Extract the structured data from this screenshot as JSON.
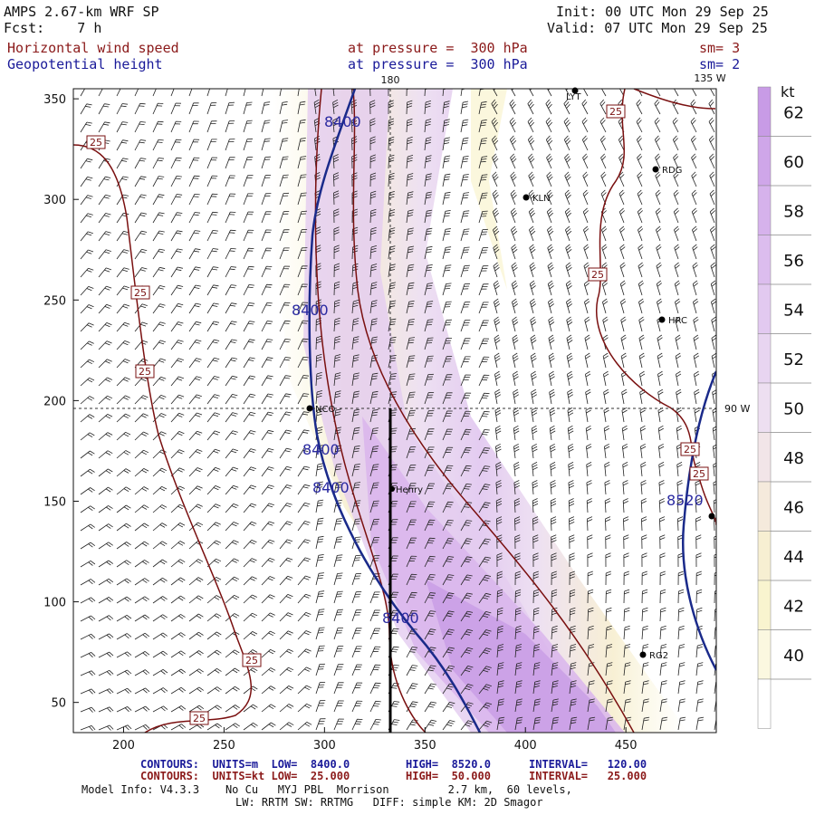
{
  "header": {
    "model": "AMPS 2.67-km WRF SP",
    "forecast": "Fcst:    7 h",
    "init": "Init: 00 UTC Mon 29 Sep 25",
    "valid": "Valid: 07 UTC Mon 29 Sep 25",
    "field1": "Horizontal wind speed",
    "field1_level": "at pressure =  300 hPa",
    "field1_sm": "sm= 3",
    "field2": "Geopotential height",
    "field2_level": "at pressure =  300 hPa",
    "field2_sm": "sm= 2"
  },
  "map": {
    "x_ticks": [
      "200",
      "250",
      "300",
      "350",
      "400",
      "450"
    ],
    "y_ticks": [
      "50",
      "100",
      "150",
      "200",
      "250",
      "300",
      "350"
    ],
    "x_range": [
      175,
      495
    ],
    "y_range": [
      35,
      355
    ],
    "meridian_180": "180",
    "meridian_135w": "135 W",
    "meridian_90w": "90 W",
    "stations": [
      {
        "name": "NCO"
      },
      {
        "name": "Henry"
      },
      {
        "name": "KLN"
      },
      {
        "name": "RDG"
      },
      {
        "name": "HRC"
      },
      {
        "name": "RG2"
      },
      {
        "name": "LYT"
      }
    ],
    "height_labels": [
      "8400",
      "8400",
      "8400",
      "8400",
      "8400",
      "8520"
    ],
    "speed_labels": [
      "25",
      "25",
      "25",
      "25",
      "25",
      "25",
      "25",
      "25",
      "25"
    ],
    "colors": {
      "height_contour": "#1a2a8a",
      "speed_contour": "#7a1010",
      "barb": "#222222"
    }
  },
  "colorbar": {
    "unit": "kt",
    "labels": [
      "62",
      "60",
      "58",
      "56",
      "54",
      "52",
      "50",
      "48",
      "46",
      "44",
      "42",
      "40"
    ],
    "colors": [
      "#c89be6",
      "#cfa6e9",
      "#d6b2ec",
      "#dcbdee",
      "#e2c9f0",
      "#e8d5f1",
      "#eddff1",
      "#f2e5e8",
      "#f5eadc",
      "#f7efd2",
      "#f9f4cf",
      "#fbf8e0",
      "#ffffff"
    ]
  },
  "footer": {
    "contour1_a": "CONTOURS:  UNITS=m  LOW=  8400.0",
    "contour1_b": "HIGH=  8520.0",
    "contour1_c": "INTERVAL=   120.00",
    "contour2_a": "CONTOURS:  UNITS=kt LOW=  25.000",
    "contour2_b": "HIGH=  50.000",
    "contour2_c": "INTERVAL=   25.000",
    "model_info": "Model Info: V4.3.3    No Cu   MYJ PBL  Morrison         2.7 km,  60 levels,",
    "model_info2": "LW: RRTM SW: RRTMG   DIFF: simple KM: 2D Smagor"
  }
}
